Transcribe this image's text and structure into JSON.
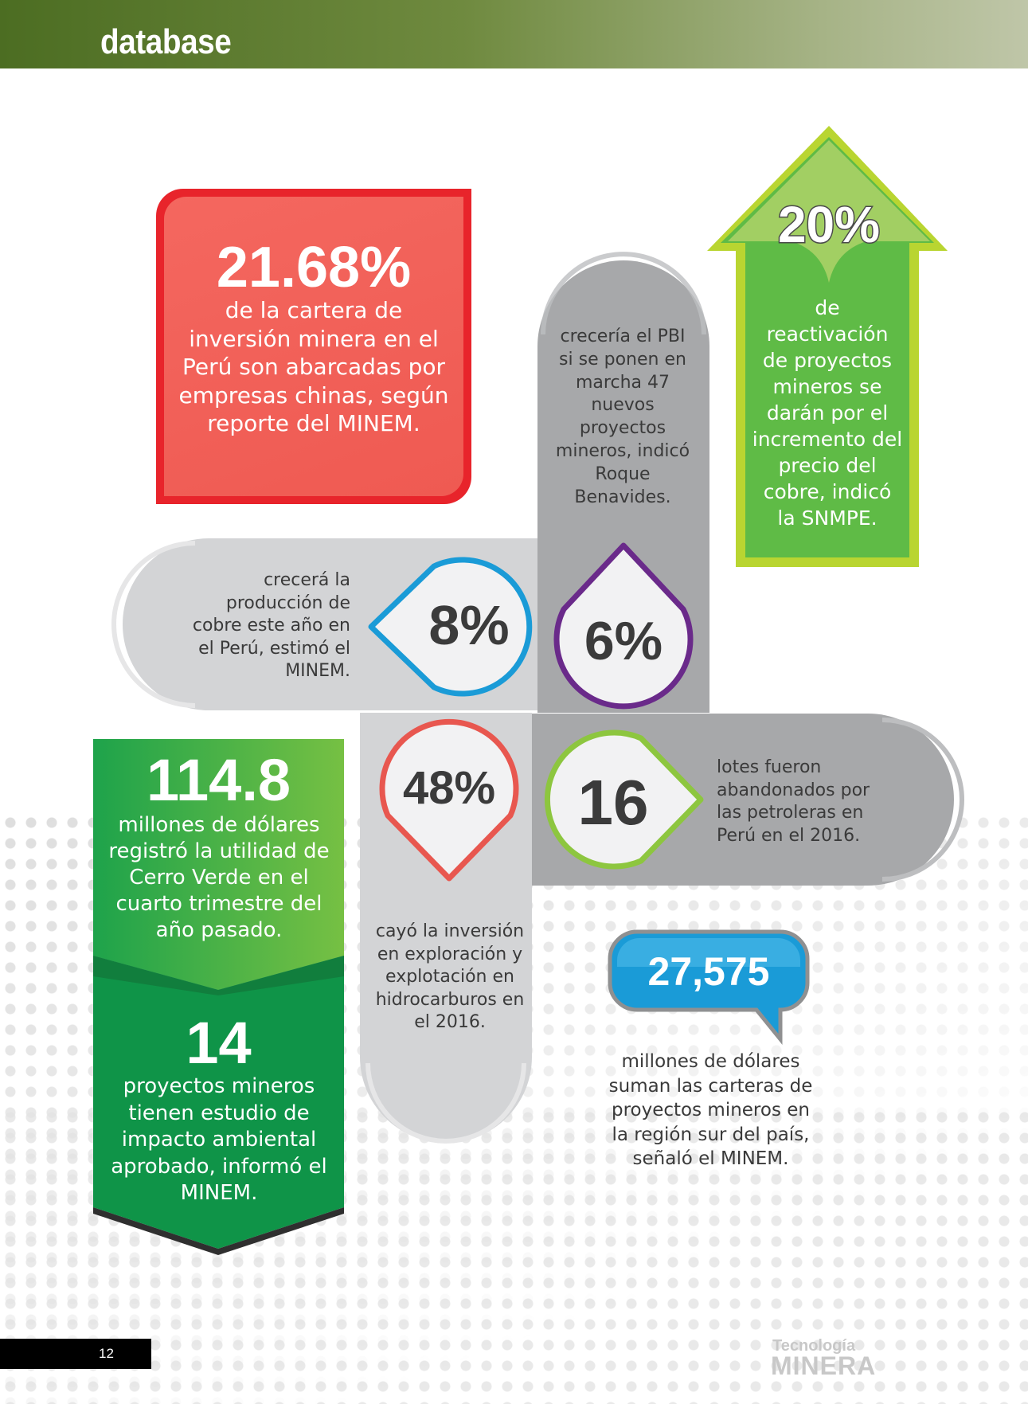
{
  "header": {
    "section_title": "database"
  },
  "stats": {
    "red": {
      "value": "21.68%",
      "text": "de la cartera de inversión minera en el Perú son abarcadas por empresas chinas, según reporte del MINEM."
    },
    "arrow": {
      "value": "20%",
      "text": "de reactivación de proyectos mineros se darán por el incremento del precio del cobre, indicó la SNMPE."
    },
    "pbi": {
      "value": "6%",
      "text": "crecería el PBI si se ponen en marcha 47 nuevos proyectos mineros, indicó Roque Benavides."
    },
    "cobre": {
      "value": "8%",
      "text": "crecerá la producción de cobre este año en el Perú, estimó el MINEM."
    },
    "utilidad": {
      "value": "114.8",
      "text": "millones de dólares registró la utilidad de Cerro Verde en el cuarto trimestre del año pasado."
    },
    "eia": {
      "value": "14",
      "text": "proyectos mineros tienen estudio de impacto ambiental aprobado, informó el MINEM."
    },
    "hidro": {
      "value": "48%",
      "text": "cayó la inversión en exploración y explotación en hidrocarburos en el 2016."
    },
    "lotes": {
      "value": "16",
      "text": "lotes fueron abandonados por las petroleras en Perú en el 2016."
    },
    "cartera": {
      "value": "27,575",
      "text": "millones de dólares suman las carteras de proyectos mineros en la región sur del país, señaló el MINEM."
    }
  },
  "footer": {
    "page_number": "12",
    "logo_top": "Tecnología",
    "logo_bottom": "MINERA"
  },
  "colors": {
    "header_green": "#5b7a2c",
    "red": "#e8242b",
    "lime": "#b9d531",
    "green": "#2aa84a",
    "blue": "#1a9bd7",
    "purple": "#6a2a8a",
    "grey_dark": "#a7a8aa",
    "grey_light": "#d3d4d6"
  }
}
